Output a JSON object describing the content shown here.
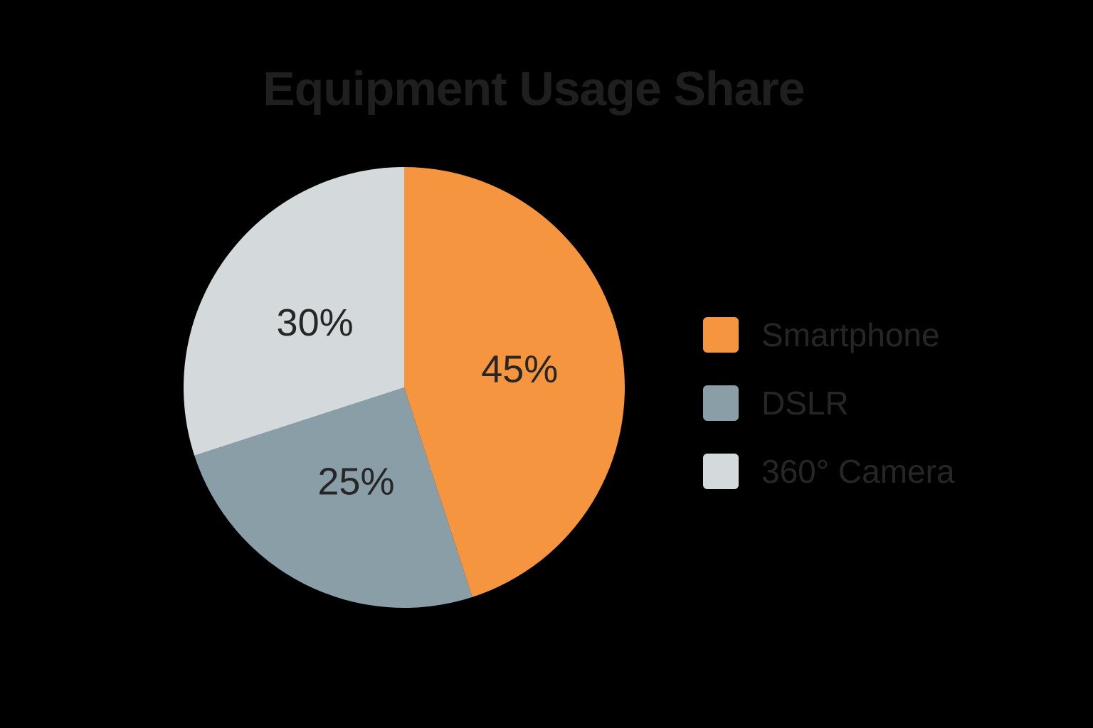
{
  "chart_data": {
    "type": "pie",
    "title": "Equipment Usage Share",
    "categories": [
      "Smartphone",
      "DSLR",
      "360° Camera"
    ],
    "values": [
      45,
      25,
      30
    ],
    "value_labels": [
      "45%",
      "25%",
      "30%"
    ],
    "unit": "%",
    "colors": [
      "#f5953f",
      "#8a9ea8",
      "#d4d9dc"
    ],
    "start_angle": "12 o'clock, clockwise",
    "legend_position": "right"
  }
}
